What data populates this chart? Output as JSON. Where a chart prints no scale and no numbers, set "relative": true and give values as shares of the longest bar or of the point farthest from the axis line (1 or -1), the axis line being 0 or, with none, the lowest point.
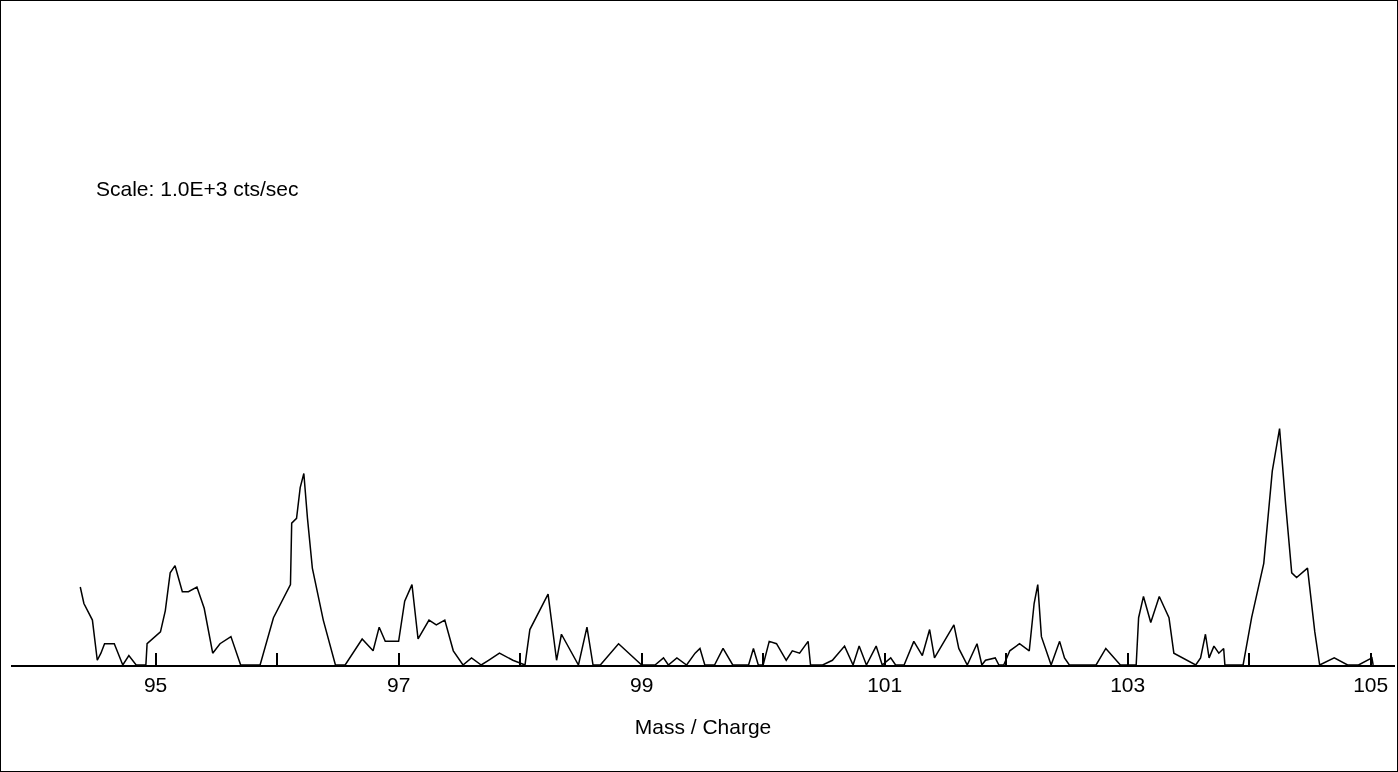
{
  "chart_data": {
    "type": "line",
    "relative": true,
    "xlabel": "Mass / Charge",
    "annotations": [
      "Scale: 1.0E+3 cts/sec"
    ],
    "color": "#000000",
    "marker": "none",
    "line_style": "solid",
    "tick_labels": "x",
    "xlim": [
      93.81,
      105.2
    ],
    "xticks": [
      95,
      {
        "value": 96,
        "label": null
      },
      97,
      {
        "value": 98,
        "label": null
      },
      99,
      {
        "value": 100,
        "label": null
      },
      101,
      {
        "value": 102,
        "label": null
      },
      103,
      {
        "value": 104,
        "label": null
      },
      105
    ],
    "x": [
      94.38,
      94.41,
      94.48,
      94.52,
      94.55,
      94.58,
      94.66,
      94.73,
      94.78,
      94.84,
      94.92,
      94.93,
      95.04,
      95.08,
      95.12,
      95.16,
      95.22,
      95.27,
      95.34,
      95.4,
      95.47,
      95.53,
      95.62,
      95.7,
      95.86,
      95.97,
      96.11,
      96.12,
      96.16,
      96.19,
      96.22,
      96.25,
      96.29,
      96.38,
      96.48,
      96.56,
      96.7,
      96.79,
      96.84,
      96.89,
      97.0,
      97.05,
      97.11,
      97.16,
      97.25,
      97.31,
      97.38,
      97.45,
      97.53,
      97.6,
      97.68,
      97.74,
      97.83,
      97.94,
      98.04,
      98.08,
      98.23,
      98.3,
      98.34,
      98.48,
      98.55,
      98.6,
      98.66,
      98.81,
      99.0,
      99.11,
      99.18,
      99.22,
      99.29,
      99.37,
      99.44,
      99.48,
      99.52,
      99.6,
      99.67,
      99.75,
      99.88,
      99.92,
      99.96,
      100.0,
      100.05,
      100.11,
      100.19,
      100.24,
      100.3,
      100.37,
      100.39,
      100.49,
      100.57,
      100.67,
      100.74,
      100.79,
      100.85,
      100.93,
      100.98,
      101.05,
      101.09,
      101.16,
      101.24,
      101.31,
      101.37,
      101.41,
      101.57,
      101.61,
      101.68,
      101.76,
      101.8,
      101.83,
      101.91,
      101.94,
      101.98,
      102.03,
      102.11,
      102.19,
      102.23,
      102.26,
      102.29,
      102.37,
      102.44,
      102.48,
      102.52,
      102.74,
      102.82,
      102.94,
      103.07,
      103.09,
      103.13,
      103.19,
      103.26,
      103.34,
      103.38,
      103.56,
      103.6,
      103.64,
      103.67,
      103.71,
      103.75,
      103.79,
      103.8,
      103.95,
      104.02,
      104.12,
      104.19,
      104.25,
      104.3,
      104.35,
      104.39,
      104.48,
      104.54,
      104.58,
      104.7,
      104.81,
      104.9,
      105.01,
      105.02
    ],
    "values": [
      0.33,
      0.26,
      0.19,
      0.02,
      0.05,
      0.09,
      0.09,
      0,
      0.04,
      0,
      0,
      0.09,
      0.14,
      0.23,
      0.39,
      0.42,
      0.31,
      0.31,
      0.33,
      0.24,
      0.05,
      0.09,
      0.12,
      0,
      0,
      0.2,
      0.34,
      0.6,
      0.62,
      0.75,
      0.81,
      0.62,
      0.41,
      0.19,
      0,
      0,
      0.11,
      0.06,
      0.16,
      0.1,
      0.1,
      0.27,
      0.34,
      0.11,
      0.19,
      0.17,
      0.19,
      0.06,
      0,
      0.03,
      0,
      0.02,
      0.05,
      0.02,
      0,
      0.15,
      0.3,
      0.02,
      0.13,
      0,
      0.16,
      0,
      0,
      0.09,
      0,
      0,
      0.03,
      0,
      0.03,
      0,
      0.05,
      0.07,
      0,
      0,
      0.07,
      0,
      0,
      0.07,
      0,
      0,
      0.1,
      0.09,
      0.02,
      0.06,
      0.05,
      0.1,
      0,
      0,
      0.02,
      0.08,
      0,
      0.08,
      0,
      0.08,
      0,
      0.03,
      0,
      0,
      0.1,
      0.04,
      0.15,
      0.03,
      0.17,
      0.07,
      0,
      0.09,
      0,
      0.02,
      0.03,
      0,
      0,
      0.06,
      0.09,
      0.06,
      0.26,
      0.34,
      0.12,
      0,
      0.1,
      0.03,
      0,
      0,
      0.07,
      0,
      0,
      0.2,
      0.29,
      0.18,
      0.29,
      0.2,
      0.05,
      0,
      0.03,
      0.13,
      0.03,
      0.08,
      0.05,
      0.07,
      0,
      0,
      0.2,
      0.43,
      0.82,
      1.0,
      0.68,
      0.39,
      0.37,
      0.41,
      0.14,
      0,
      0.03,
      0,
      0,
      0.03,
      0
    ]
  }
}
